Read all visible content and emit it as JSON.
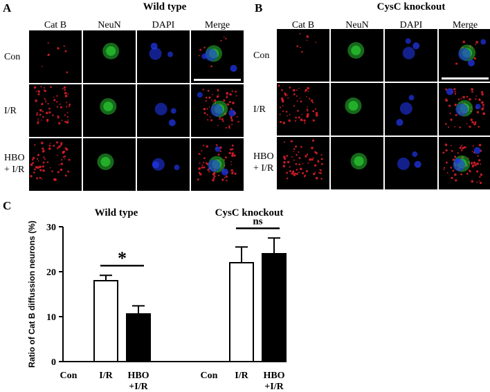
{
  "figure": {
    "panel_a": {
      "letter": "A",
      "title": "Wild type",
      "columns": [
        "Cat B",
        "NeuN",
        "DAPI",
        "Merge"
      ],
      "rows": [
        "Con",
        "I/R",
        "HBO\n+ I/R"
      ]
    },
    "panel_b": {
      "letter": "B",
      "title": "CysC knockout",
      "columns": [
        "Cat B",
        "NeuN",
        "DAPI",
        "Merge"
      ],
      "rows": [
        "Con",
        "I/R",
        "HBO\n+ I/R"
      ]
    },
    "panel_c": {
      "letter": "C",
      "titles": [
        "Wild type",
        "CysC knockout"
      ],
      "significance": [
        "*",
        "ns"
      ]
    },
    "colors": {
      "cat_b": "#e0202a",
      "neun": "#28c030",
      "dapi": "#2035e8",
      "bar_open": "#ffffff",
      "bar_filled": "#000000"
    }
  },
  "chart_data": {
    "type": "bar",
    "ylabel": "Ratio of Cat B diffussion neurons (%)",
    "ylim": [
      0,
      30
    ],
    "yticks": [
      0,
      10,
      20,
      30
    ],
    "groups": [
      {
        "title": "Wild type",
        "categories": [
          "Con",
          "I/R",
          "HBO\n+I/R"
        ],
        "values": [
          0,
          18.0,
          10.6
        ],
        "errors": [
          0,
          1.2,
          1.8
        ],
        "fills": [
          "open",
          "open",
          "filled"
        ],
        "significance": "*"
      },
      {
        "title": "CysC knockout",
        "categories": [
          "Con",
          "I/R",
          "HBO\n+I/R"
        ],
        "values": [
          0,
          22.0,
          24.0
        ],
        "errors": [
          0,
          3.5,
          3.5
        ],
        "fills": [
          "open",
          "open",
          "filled"
        ],
        "significance": "ns"
      }
    ]
  }
}
